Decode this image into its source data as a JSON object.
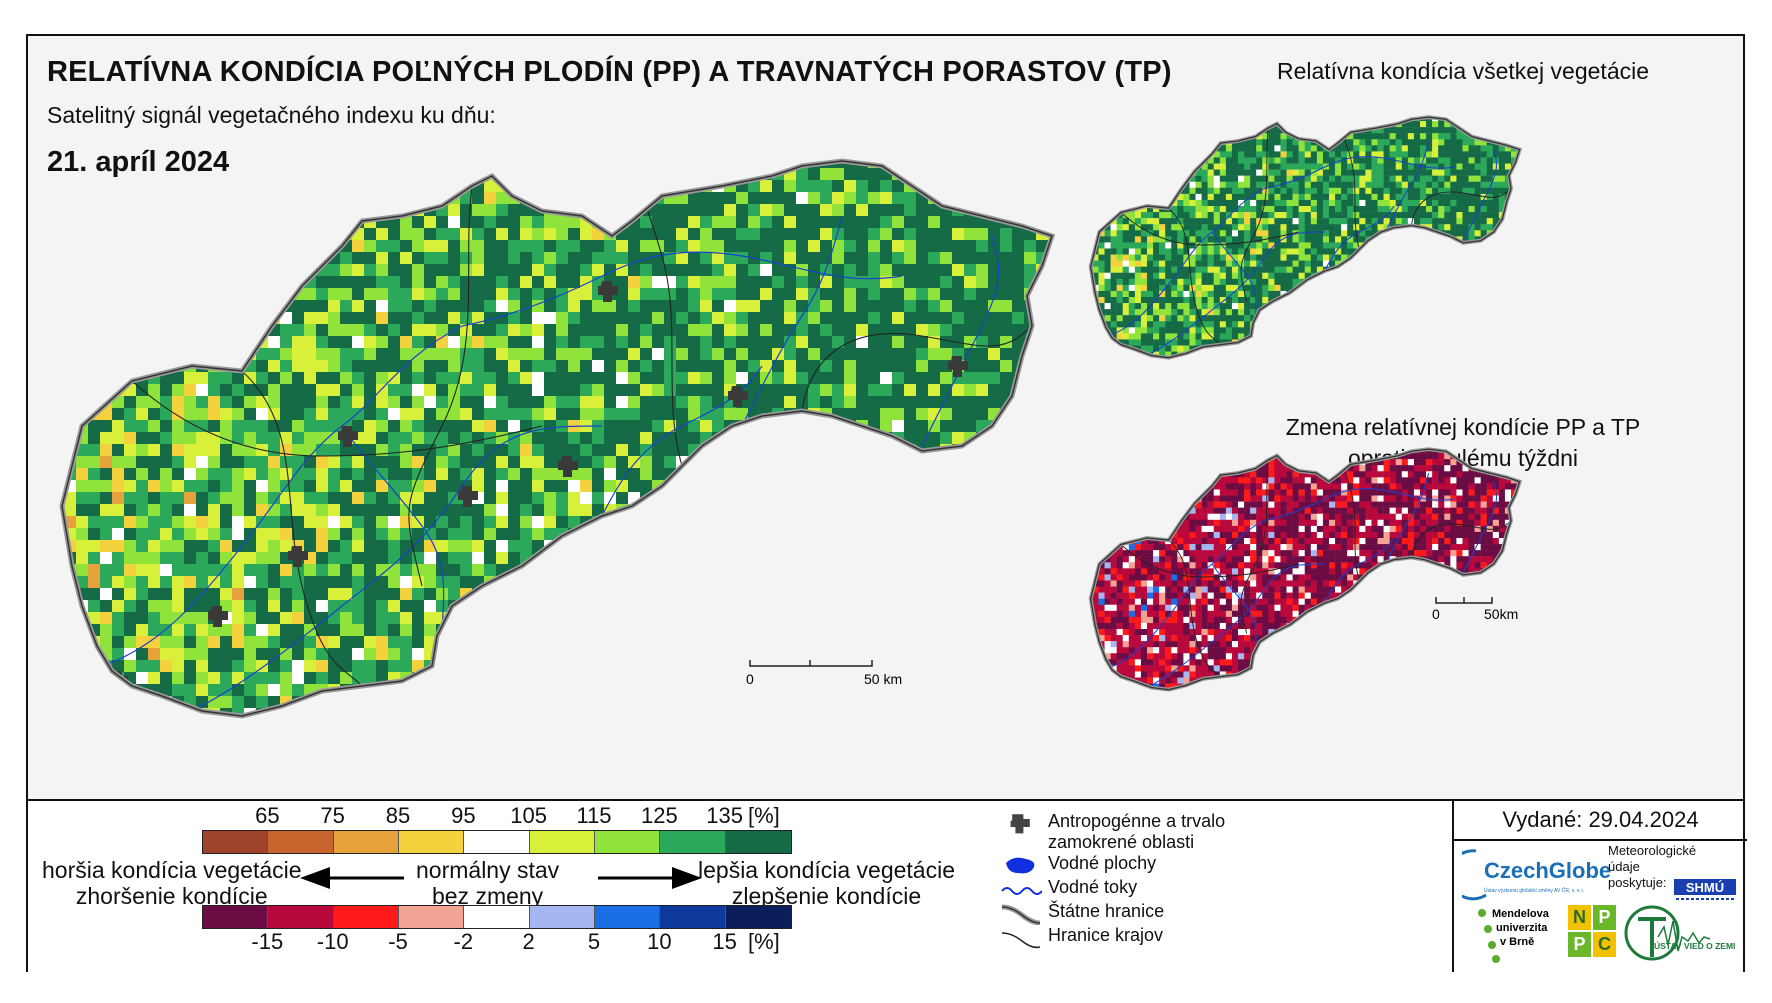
{
  "header": {
    "title": "RELATÍVNA KONDÍCIA POĽNÝCH PLODÍN (PP) A TRAVNATÝCH PORASTOV (TP)",
    "subtitle": "Satelitný signál vegetačného indexu ku dňu:",
    "date": "21. apríl 2024"
  },
  "insets": {
    "vegetation_title": "Relatívna kondícia všetkej vegetácie",
    "change_title_line1": "Zmena relatívnej kondície PP a TP",
    "change_title_line2": "oproti minulému týždni"
  },
  "scalebar": {
    "main": {
      "zero": "0",
      "end": "50 km"
    },
    "inset": {
      "zero": "0",
      "end": "50km"
    }
  },
  "legend": {
    "condition_ticks": [
      "65",
      "75",
      "85",
      "95",
      "105",
      "115",
      "125",
      "135",
      "[%]"
    ],
    "condition_colors": [
      "#a0432d",
      "#c8642e",
      "#e6a23a",
      "#f3d23e",
      "#ffffff",
      "#d9f03a",
      "#8fe33a",
      "#2ba85a",
      "#146b46"
    ],
    "change_ticks": [
      "-15",
      "-10",
      "-5",
      "-2",
      "2",
      "5",
      "10",
      "15",
      "[%]"
    ],
    "change_colors": [
      "#6b0d44",
      "#b8083c",
      "#ff1a1a",
      "#f4a494",
      "#ffffff",
      "#a6b6f0",
      "#1a6ee6",
      "#0d3a9c",
      "#0c1e5a"
    ],
    "worse_line1": "horšia kondícia vegetácie",
    "worse_line2": "zhoršenie kondície",
    "normal_line1": "normálny stav",
    "normal_line2": "bez zmeny",
    "better_line1": "lepšia kondícia vegetácie",
    "better_line2": "zlepšenie kondície"
  },
  "symbols": {
    "anthropogenic": "Antropogénne a trvalo zamokrené oblasti",
    "water_bodies": "Vodné plochy",
    "rivers": "Vodné toky",
    "state_border": "Štátne hranice",
    "region_border": "Hranice krajov"
  },
  "footer": {
    "issued": "Vydané: 29.04.2024",
    "czechglobe": "CzechGlobe",
    "czechglobe_sub": "Ústav výzkumu globální změny AV ČR, v. v. i.",
    "meteo_line1": "Meteorologické",
    "meteo_line2": "údaje",
    "meteo_line3": "poskytuje:",
    "shmu": "SHMÚ",
    "mendel_line1": "Mendelova",
    "mendel_line2": "univerzita",
    "mendel_line3": "v Brně",
    "nppc": [
      "N",
      "P",
      "P",
      "C"
    ],
    "uvz": "ÚSTAV VIED O ZEMI"
  }
}
